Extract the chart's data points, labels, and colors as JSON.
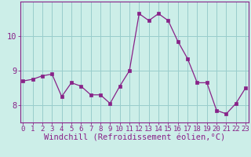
{
  "x": [
    0,
    1,
    2,
    3,
    4,
    5,
    6,
    7,
    8,
    9,
    10,
    11,
    12,
    13,
    14,
    15,
    16,
    17,
    18,
    19,
    20,
    21,
    22,
    23
  ],
  "y": [
    8.7,
    8.75,
    8.85,
    8.9,
    8.25,
    8.65,
    8.55,
    8.3,
    8.3,
    8.05,
    8.55,
    9.0,
    10.65,
    10.45,
    10.65,
    10.45,
    9.85,
    9.35,
    8.65,
    8.65,
    7.85,
    7.75,
    8.05,
    8.5
  ],
  "bg_color": "#cceee8",
  "line_color": "#882288",
  "marker_color": "#882288",
  "grid_color": "#99cccc",
  "spine_color": "#882288",
  "xlabel": "Windchill (Refroidissement éolien,°C)",
  "yticks": [
    8,
    9,
    10
  ],
  "xticks": [
    0,
    1,
    2,
    3,
    4,
    5,
    6,
    7,
    8,
    9,
    10,
    11,
    12,
    13,
    14,
    15,
    16,
    17,
    18,
    19,
    20,
    21,
    22,
    23
  ],
  "ylim": [
    7.5,
    11.0
  ],
  "xlim": [
    -0.3,
    23.3
  ],
  "tick_color": "#882288",
  "font_size_xlabel": 7.5,
  "font_size_ytick": 7.5,
  "font_size_xtick": 6.5
}
